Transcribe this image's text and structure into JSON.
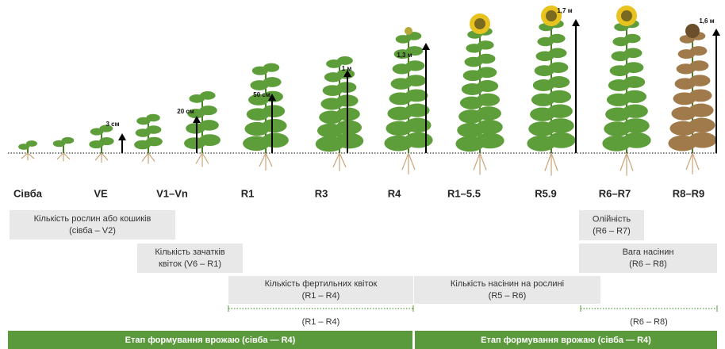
{
  "stages": [
    "Сівба",
    "VE",
    "V1–Vn",
    "R1",
    "R3",
    "R4",
    "R1–5.5",
    "R5.9",
    "R6–R7",
    "R8–R9"
  ],
  "heights": [
    "3 см",
    "20 см",
    "50 см",
    "1 м",
    "1,3 м",
    "1,7 м",
    "1,6 м"
  ],
  "boxes": [
    {
      "lines": [
        "Кількість рослин або кошиків",
        "(сівба – V2)"
      ]
    },
    {
      "lines": [
        "Кількість зачатків",
        "квіток (V6 – R1)"
      ]
    },
    {
      "lines": [
        "Кількість фертильних квіток",
        "(R1 – R4)"
      ]
    },
    {
      "lines": [
        "Кількість насінин на рослині",
        "(R5 – R6)"
      ]
    },
    {
      "lines": [
        "Олійність",
        "(R6 – R7)"
      ]
    },
    {
      "lines": [
        "Вага насінин",
        "(R6 – R8)"
      ]
    }
  ],
  "ranges": [
    "(R1 – R4)",
    "(R6 – R8)"
  ],
  "banners": [
    "Етап формування врожаю (сівба — R4)",
    "Етап формування врожаю (сівба — R4)"
  ]
}
